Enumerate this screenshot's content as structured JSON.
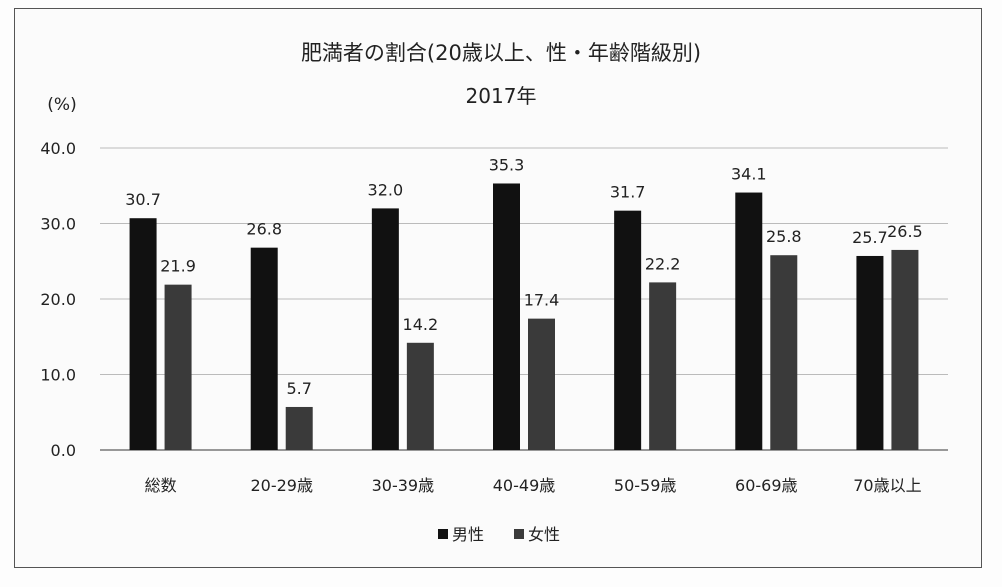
{
  "chart_data": {
    "type": "bar",
    "title": "肥満者の割合(20歳以上、性・年齢階級別)",
    "subtitle": "2017年",
    "ylabel": "(%)",
    "xlabel": "",
    "ylim": [
      0,
      40
    ],
    "yticks": [
      "0.0",
      "10.0",
      "20.0",
      "30.0",
      "40.0"
    ],
    "grid": true,
    "legend_position": "bottom",
    "categories": [
      "総数",
      "20-29歳",
      "30-39歳",
      "40-49歳",
      "50-59歳",
      "60-69歳",
      "70歳以上"
    ],
    "series": [
      {
        "name": "男性",
        "values": [
          30.7,
          26.8,
          32.0,
          35.3,
          31.7,
          34.1,
          25.7
        ],
        "labels": [
          "30.7",
          "26.8",
          "32.0",
          "35.3",
          "31.7",
          "34.1",
          "25.7"
        ],
        "color": "#111111"
      },
      {
        "name": "女性",
        "values": [
          21.9,
          5.7,
          14.2,
          17.4,
          22.2,
          25.8,
          26.5
        ],
        "labels": [
          "21.9",
          "5.7",
          "14.2",
          "17.4",
          "22.2",
          "25.8",
          "26.5"
        ],
        "color": "#3a3a3a"
      }
    ]
  }
}
